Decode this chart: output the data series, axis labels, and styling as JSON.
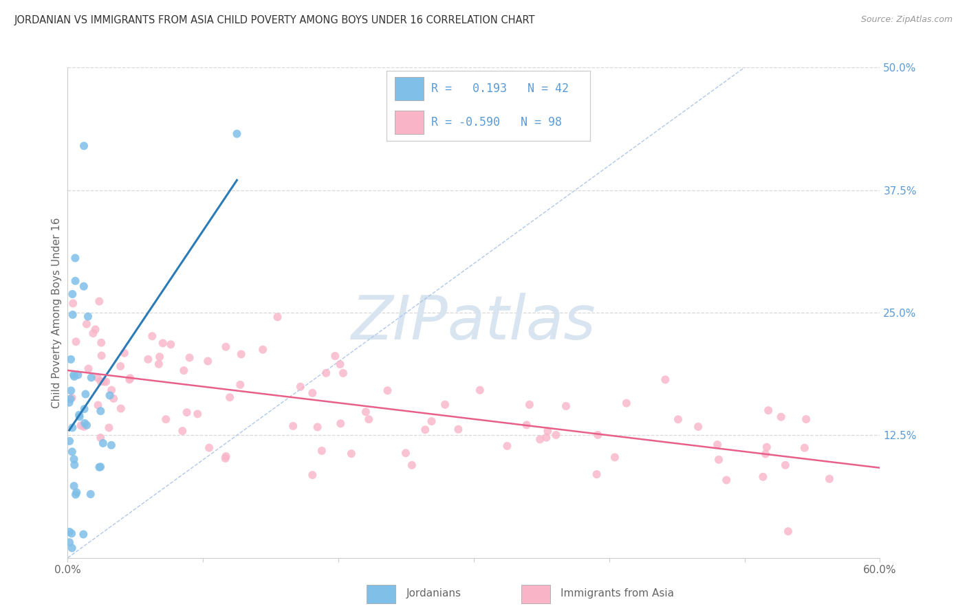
{
  "title": "JORDANIAN VS IMMIGRANTS FROM ASIA CHILD POVERTY AMONG BOYS UNDER 16 CORRELATION CHART",
  "source": "Source: ZipAtlas.com",
  "ylabel": "Child Poverty Among Boys Under 16",
  "legend_label1": "Jordanians",
  "legend_label2": "Immigrants from Asia",
  "R1": 0.193,
  "N1": 42,
  "R2": -0.59,
  "N2": 98,
  "color_blue": "#7fbfe8",
  "color_pink": "#f9b4c8",
  "color_blue_line": "#2c7bb6",
  "color_pink_line": "#e8608a",
  "color_dashed": "#b0c8e8",
  "watermark_color": "#d8e4f0",
  "background": "#ffffff",
  "xlim": [
    0.0,
    0.6
  ],
  "ylim": [
    0.0,
    0.5
  ],
  "grid_color": "#d8d8d8",
  "axis_color": "#cccccc",
  "right_tick_color": "#5b9bd5",
  "label_color": "#666666",
  "title_color": "#333333",
  "source_color": "#999999",
  "title_fontsize": 10.5,
  "source_fontsize": 9,
  "tick_fontsize": 11,
  "label_fontsize": 11,
  "legend_fontsize": 12
}
